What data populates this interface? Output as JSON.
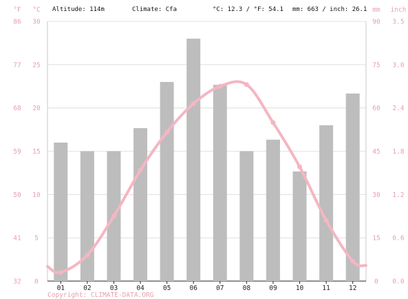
{
  "header": {
    "altitude": "Altitude: 114m",
    "climate": "Climate: Cfa",
    "temp_avg": "°C: 12.3 / °F: 54.1",
    "precip_avg": "mm: 663 / inch: 26.1"
  },
  "footer": {
    "copyright": "Copyright: CLIMATE-DATA.ORG"
  },
  "chart_data": {
    "type": "bar",
    "categories": [
      "01",
      "02",
      "03",
      "04",
      "05",
      "06",
      "07",
      "08",
      "09",
      "10",
      "11",
      "12"
    ],
    "axes": {
      "left_outer": {
        "unit": "°F",
        "ticks": [
          "32",
          "41",
          "50",
          "59",
          "68",
          "77",
          "86"
        ]
      },
      "left_inner": {
        "unit": "°C",
        "ticks": [
          "0",
          "5",
          "10",
          "15",
          "20",
          "25",
          "30"
        ],
        "range": [
          0,
          30
        ]
      },
      "right_inner": {
        "unit": "mm",
        "ticks": [
          "0",
          "15",
          "30",
          "45",
          "60",
          "75",
          "90"
        ],
        "range": [
          0,
          90
        ]
      },
      "right_outer": {
        "unit": "inch",
        "ticks": [
          "0.0",
          "0.6",
          "1.2",
          "1.8",
          "2.4",
          "3.0",
          "3.5"
        ]
      }
    },
    "series": [
      {
        "kind": "bar",
        "axis": "right_inner",
        "color": "#bdbdbd",
        "values": [
          48,
          45,
          45,
          53,
          69,
          84,
          68,
          45,
          49,
          38,
          54,
          65
        ]
      },
      {
        "kind": "line",
        "axis": "left_inner",
        "color": "#f4b6c2",
        "values": [
          1.0,
          3.0,
          7.5,
          12.8,
          17.2,
          20.5,
          22.5,
          22.7,
          18.3,
          13.2,
          7.0,
          2.3
        ]
      }
    ],
    "line_edges": [
      1.7,
      1.8
    ],
    "grid": true,
    "colors": {
      "axis_label": "#e8a0ae",
      "bar": "#bdbdbd",
      "line": "#f4b6c2"
    }
  }
}
